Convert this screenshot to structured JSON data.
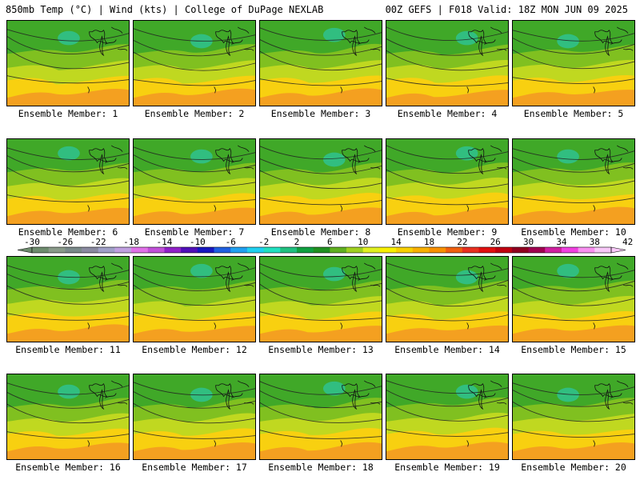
{
  "header": {
    "left": "850mb Temp (°C) | Wind (kts) | College of DuPage NEXLAB",
    "right": "00Z GEFS | F018 Valid: 18Z MON JUN 09 2025"
  },
  "panels": [
    {
      "label": "Ensemble Member: 1"
    },
    {
      "label": "Ensemble Member: 2"
    },
    {
      "label": "Ensemble Member: 3"
    },
    {
      "label": "Ensemble Member: 4"
    },
    {
      "label": "Ensemble Member: 5"
    },
    {
      "label": "Ensemble Member: 6"
    },
    {
      "label": "Ensemble Member: 7"
    },
    {
      "label": "Ensemble Member: 8"
    },
    {
      "label": "Ensemble Member: 9"
    },
    {
      "label": "Ensemble Member: 10"
    },
    {
      "label": "Ensemble Member: 11"
    },
    {
      "label": "Ensemble Member: 12"
    },
    {
      "label": "Ensemble Member: 13"
    },
    {
      "label": "Ensemble Member: 14"
    },
    {
      "label": "Ensemble Member: 15"
    },
    {
      "label": "Ensemble Member: 16"
    },
    {
      "label": "Ensemble Member: 17"
    },
    {
      "label": "Ensemble Member: 18"
    },
    {
      "label": "Ensemble Member: 19"
    },
    {
      "label": "Ensemble Member: 20"
    }
  ],
  "colorbar": {
    "ticks": [
      "-30",
      "-26",
      "-22",
      "-18",
      "-14",
      "-10",
      "-6",
      "-2",
      "2",
      "6",
      "10",
      "14",
      "18",
      "22",
      "26",
      "30",
      "34",
      "38",
      "42"
    ],
    "colors": [
      "#6e8c6e",
      "#8a9a8a",
      "#7a8a8a",
      "#8a8aa0",
      "#a0a0c8",
      "#c0a0e0",
      "#e070e8",
      "#c050d8",
      "#9020c8",
      "#5010b8",
      "#1818c0",
      "#2060e0",
      "#20a0f0",
      "#20d0f0",
      "#20e0c0",
      "#20c080",
      "#10a040",
      "#209020",
      "#60b020",
      "#a0d020",
      "#e0f020",
      "#f8f000",
      "#f8d000",
      "#f8b000",
      "#f89000",
      "#f06010",
      "#e83020",
      "#e01010",
      "#c00010",
      "#900020",
      "#a00050",
      "#d020a0",
      "#f040e0",
      "#f890f0",
      "#f8c8f8"
    ]
  }
}
